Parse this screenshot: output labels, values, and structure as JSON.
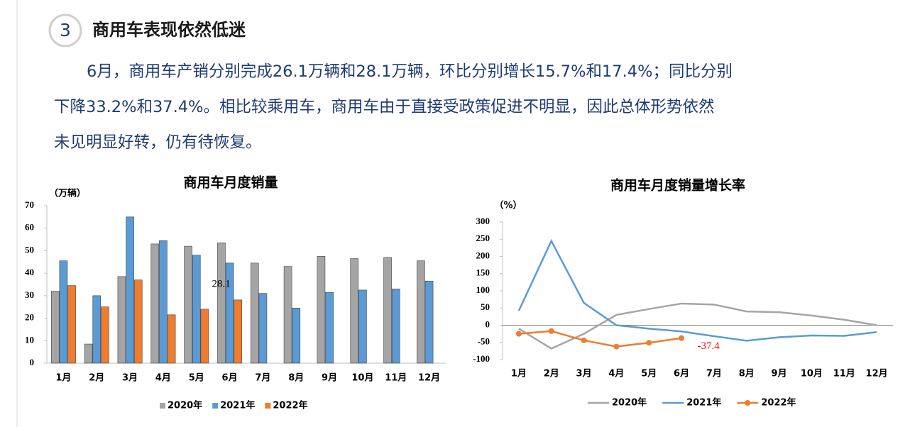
{
  "header": {
    "number": "3",
    "title": "商用车表现依然低迷"
  },
  "paragraph": {
    "lines": [
      "6月，商用车产销分别完成26.1万辆和28.1万辆，环比分别增长15.7%和17.4%；同比分别",
      "下降33.2%和37.4%。相比较乘用车，商用车由于直接受政策促进不明显，因此总体形势依然",
      "未见明显好转，仍有待恢复。"
    ]
  },
  "chart_data": [
    {
      "type": "bar",
      "title": "商用车月度销量",
      "y_label": "（万辆）",
      "categories": [
        "1月",
        "2月",
        "3月",
        "4月",
        "5月",
        "6月",
        "7月",
        "8月",
        "9月",
        "10月",
        "11月",
        "12月"
      ],
      "series": [
        {
          "name": "2020年",
          "color": "#a5a5a5",
          "values": [
            32,
            8.5,
            38.5,
            53,
            52,
            53.5,
            44.5,
            43,
            47.5,
            46.5,
            47,
            45.5
          ]
        },
        {
          "name": "2021年",
          "color": "#5b9bd5",
          "values": [
            45.5,
            30,
            65,
            54.5,
            48,
            44.5,
            31,
            24.5,
            31.5,
            32.5,
            33,
            36.5
          ]
        },
        {
          "name": "2022年",
          "color": "#ed7d31",
          "values": [
            34.5,
            25,
            37,
            21.5,
            24,
            28.1,
            null,
            null,
            null,
            null,
            null,
            null
          ],
          "value_labels": [
            null,
            null,
            null,
            null,
            null,
            "28.1",
            null,
            null,
            null,
            null,
            null,
            null
          ],
          "label_color": "#000000"
        }
      ],
      "ylim": [
        0,
        70
      ],
      "yticks": [
        0,
        10,
        20,
        30,
        40,
        50,
        60,
        70
      ],
      "grid": false,
      "legend": "bottom"
    },
    {
      "type": "line",
      "title": "商用车月度销量增长率",
      "y_label": "（%）",
      "categories": [
        "1月",
        "2月",
        "3月",
        "4月",
        "5月",
        "6月",
        "7月",
        "8月",
        "9月",
        "10月",
        "11月",
        "12月"
      ],
      "series": [
        {
          "name": "2020年",
          "color": "#a5a5a5",
          "values": [
            -10,
            -68,
            -25,
            30,
            47,
            63,
            60,
            40,
            38,
            28,
            16,
            0
          ]
        },
        {
          "name": "2021年",
          "color": "#5b9bd5",
          "values": [
            42,
            245,
            65,
            0,
            -10,
            -18,
            -32,
            -45,
            -35,
            -30,
            -31,
            -20
          ]
        },
        {
          "name": "2022年",
          "color": "#ed7d31",
          "markers": true,
          "values": [
            -25,
            -17,
            -44,
            -62,
            -51,
            -37.4,
            null,
            null,
            null,
            null,
            null,
            null
          ],
          "value_labels": [
            null,
            null,
            null,
            null,
            null,
            "-37.4",
            null,
            null,
            null,
            null,
            null,
            null
          ],
          "label_color": "#ff0000"
        }
      ],
      "ylim": [
        -100,
        300
      ],
      "yticks": [
        -100,
        -50,
        0,
        50,
        100,
        150,
        200,
        250,
        300
      ],
      "grid": false,
      "legend": "bottom"
    }
  ]
}
